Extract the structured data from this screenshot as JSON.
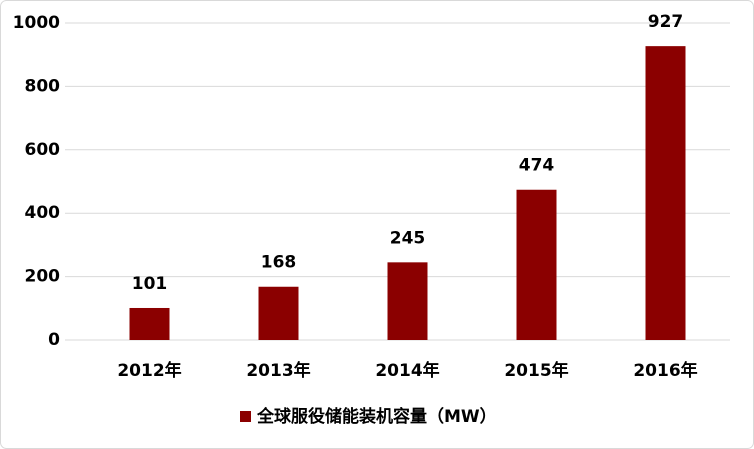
{
  "chart_data": {
    "type": "bar",
    "categories": [
      "2012年",
      "2013年",
      "2014年",
      "2015年",
      "2016年"
    ],
    "series": [
      {
        "name": "全球服役储能装机容量（MW）",
        "color": "#8b0000",
        "values": [
          101,
          168,
          245,
          474,
          927
        ]
      }
    ],
    "ylim": [
      0,
      1000
    ],
    "yticks": [
      0,
      200,
      400,
      600,
      800,
      1000
    ],
    "grid": true,
    "legend": "bottom"
  }
}
